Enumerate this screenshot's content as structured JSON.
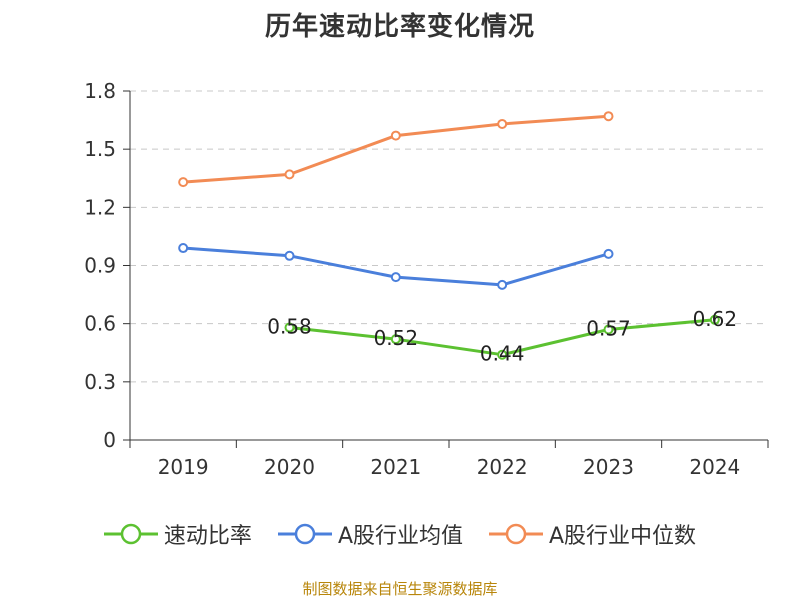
{
  "chart_data": {
    "type": "line",
    "title": "历年速动比率变化情况",
    "categories": [
      "2019",
      "2020",
      "2021",
      "2022",
      "2023",
      "2024"
    ],
    "ylim": [
      0,
      1.8
    ],
    "yticks": [
      "0",
      "0.3",
      "0.6",
      "0.9",
      "1.2",
      "1.5",
      "1.8"
    ],
    "grid": true,
    "legend_position": "bottom",
    "series": [
      {
        "name": "速动比率",
        "color": "#5cc131",
        "values": [
          null,
          0.58,
          0.52,
          0.44,
          0.57,
          0.62
        ],
        "labels": [
          "",
          "0.58",
          "0.52",
          "0.44",
          "0.57",
          "0.62"
        ]
      },
      {
        "name": "A股行业均值",
        "color": "#4a7fdb",
        "values": [
          0.99,
          0.95,
          0.84,
          0.8,
          0.96,
          null
        ]
      },
      {
        "name": "A股行业中位数",
        "color": "#f28b54",
        "values": [
          1.33,
          1.37,
          1.57,
          1.63,
          1.67,
          null
        ]
      }
    ]
  },
  "footer": {
    "source": "制图数据来自恒生聚源数据库"
  }
}
